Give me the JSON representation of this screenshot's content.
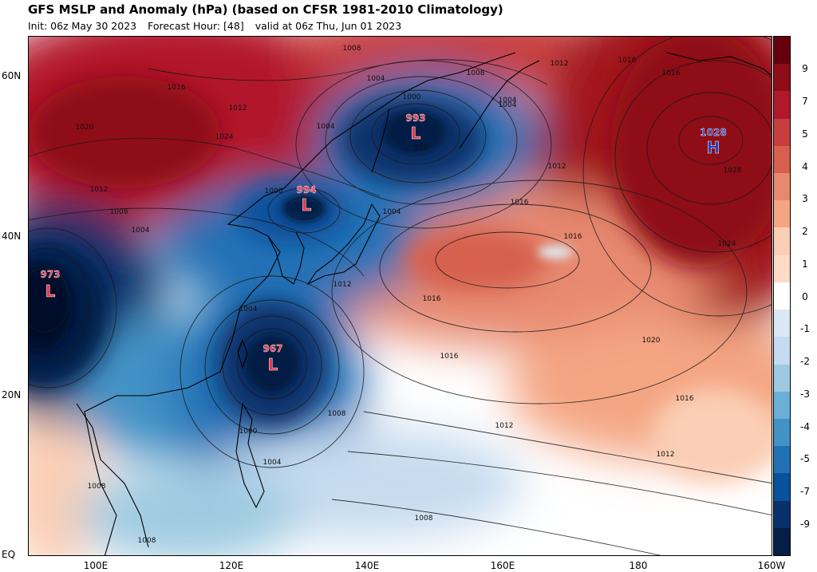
{
  "title": "GFS MSLP and Anomaly (hPa) (based on CFSR 1981-2010 Climatology)",
  "subtitle": {
    "init": "Init: 06z May 30 2023",
    "forecast_hour": "Forecast Hour: [48]",
    "valid": "valid at 06z Thu, Jun 01 2023"
  },
  "lat_labels": [
    "60N",
    "40N",
    "20N",
    "EQ"
  ],
  "lon_labels": [
    "100E",
    "120E",
    "140E",
    "160E",
    "180",
    "160W"
  ],
  "colorbar": {
    "labels": [
      "9",
      "7",
      "5",
      "4",
      "3",
      "2",
      "1",
      "0",
      "-1",
      "-2",
      "-3",
      "-4",
      "-5",
      "-7",
      "-9"
    ],
    "colors": [
      "#67000d",
      "#8e0d18",
      "#b2182b",
      "#c83d3d",
      "#d6604d",
      "#e7896f",
      "#f4a582",
      "#fbcfb5",
      "#fddbc7",
      "#ffffff",
      "#d9e8f3",
      "#c6dbef",
      "#9ecae1",
      "#6baed6",
      "#4292c6",
      "#2171b5",
      "#08519c",
      "#08306b",
      "#061d46"
    ]
  },
  "systems": [
    {
      "type": "L",
      "value": "993",
      "color": "#e8364a"
    },
    {
      "type": "L",
      "value": "994",
      "color": "#e8364a"
    },
    {
      "type": "L",
      "value": "973",
      "color": "#e8364a"
    },
    {
      "type": "L",
      "value": "967",
      "color": "#e8364a"
    },
    {
      "type": "H",
      "value": "1028",
      "color": "#2a3fb8"
    }
  ],
  "isobar_labels": [
    "1008",
    "1016",
    "1012",
    "1020",
    "1024",
    "1004",
    "1000",
    "996",
    "1008",
    "1012",
    "1016",
    "1016",
    "1004",
    "1004",
    "1012",
    "1008",
    "1004",
    "1012",
    "1016",
    "1016",
    "1020",
    "1016",
    "1012",
    "1012",
    "1008",
    "1008",
    "1008",
    "1004",
    "1000",
    "1000",
    "1004",
    "1016",
    "1024",
    "1028",
    "1012",
    "1016",
    "1008",
    "1004",
    "1004"
  ]
}
